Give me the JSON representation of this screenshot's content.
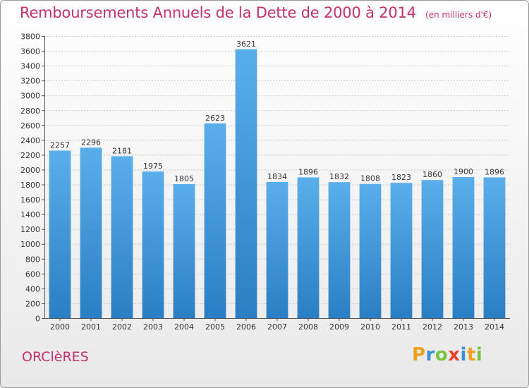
{
  "title": "Remboursements Annuels de la Dette de 2000 à 2014",
  "subtitle": "(en milliers d'€)",
  "commune": "ORClèRES",
  "logo": {
    "letters": [
      "P",
      "r",
      "o",
      "x",
      "i",
      "t",
      "i"
    ],
    "colors": [
      "#f0a020",
      "#3a8fd6",
      "#7cc242",
      "#e8452a",
      "#3a8fd6",
      "#f0a020",
      "#7cc242"
    ]
  },
  "colors": {
    "bar_light": "#5aaeea",
    "bar_dark": "#2a7fc4",
    "title": "#c4306a"
  },
  "chart_data": {
    "type": "bar",
    "categories": [
      "2000",
      "2001",
      "2002",
      "2003",
      "2004",
      "2005",
      "2006",
      "2007",
      "2008",
      "2009",
      "2010",
      "2011",
      "2012",
      "2013",
      "2014"
    ],
    "values": [
      2257,
      2296,
      2181,
      1975,
      1805,
      2623,
      3621,
      1834,
      1896,
      1832,
      1808,
      1823,
      1860,
      1900,
      1896
    ],
    "value_labels": [
      "2257",
      "2296",
      "2181",
      "1975",
      "1805",
      "2623",
      "3621",
      "1834",
      "1896",
      "1832",
      "1808",
      "1823",
      "1860",
      "1900",
      "1896"
    ],
    "title": "Remboursements Annuels de la Dette de 2000 à 2014",
    "ylim": [
      0,
      3800
    ],
    "yticks": [
      "0",
      "200",
      "400",
      "600",
      "800",
      "1000",
      "1200",
      "1400",
      "1600",
      "1800",
      "2000",
      "2200",
      "2400",
      "2600",
      "2800",
      "3000",
      "3200",
      "3400",
      "3600",
      "3800"
    ],
    "grid": true
  }
}
